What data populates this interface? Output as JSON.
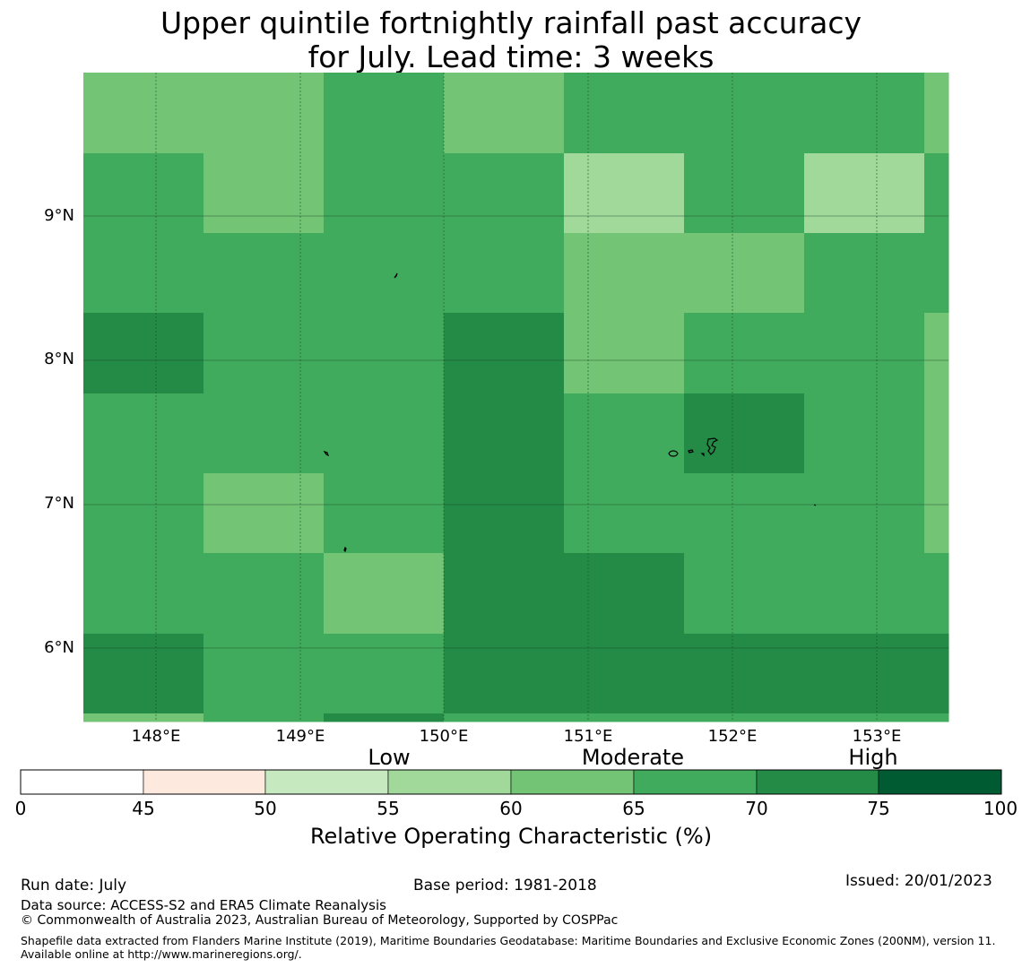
{
  "title_line1": "Upper quintile fortnightly rainfall past accuracy",
  "title_line2": "for July. Lead time: 3 weeks",
  "map": {
    "lat_labels": [
      "9°N",
      "8°N",
      "7°N",
      "6°N"
    ],
    "lon_labels": [
      "148°E",
      "149°E",
      "150°E",
      "151°E",
      "152°E",
      "153°E"
    ],
    "colors": {
      "c50": "#fee9df",
      "c55": "#c7e9c0",
      "c60": "#a1d99b",
      "c65": "#74c476",
      "c70": "#41ab5d",
      "c75": "#238b45",
      "c100": "#005a32"
    },
    "roc_grid_percent_band": [
      [
        "65",
        "65",
        "70",
        "65",
        "70",
        "70",
        "70",
        "65"
      ],
      [
        "70",
        "65",
        "70",
        "70",
        "60",
        "70",
        "60",
        "70"
      ],
      [
        "70",
        "70",
        "70",
        "70",
        "65",
        "65",
        "70",
        "70"
      ],
      [
        "75",
        "70",
        "70",
        "75",
        "65",
        "70",
        "70",
        "65"
      ],
      [
        "70",
        "70",
        "70",
        "75",
        "70",
        "75",
        "70",
        "65"
      ],
      [
        "70",
        "65",
        "70",
        "75",
        "70",
        "70",
        "70",
        "65"
      ],
      [
        "70",
        "70",
        "65",
        "75",
        "75",
        "70",
        "70",
        "70"
      ],
      [
        "75",
        "70",
        "70",
        "75",
        "75",
        "75",
        "75",
        "75"
      ],
      [
        "65",
        "70",
        "75",
        "70",
        "70",
        "70",
        "70",
        "70"
      ]
    ]
  },
  "colorbar": {
    "categories": [
      "Low",
      "Moderate",
      "High"
    ],
    "ticks": [
      "0",
      "45",
      "50",
      "55",
      "60",
      "65",
      "70",
      "75",
      "100"
    ],
    "colors": [
      "#ffffff",
      "#fee9df",
      "#c7e9c0",
      "#a1d99b",
      "#74c476",
      "#41ab5d",
      "#238b45",
      "#005a32"
    ],
    "label": "Relative Operating Characteristic (%)"
  },
  "footer": {
    "run_date": "Run date: July",
    "base_period": "Base period: 1981-2018",
    "issued": "Issued: 20/01/2023",
    "data_source": "Data source: ACCESS-S2 and ERA5 Climate Reanalysis",
    "copyright": "© Commonwealth of Australia 2023, Australian Bureau of Meteorology, Supported by COSPPac",
    "shapefile": "Shapefile data extracted from Flanders Marine Institute (2019), Maritime Boundaries Geodatabase: Maritime Boundaries and Exclusive Economic Zones (200NM), version 11. Available online at http://www.marineregions.org/."
  }
}
